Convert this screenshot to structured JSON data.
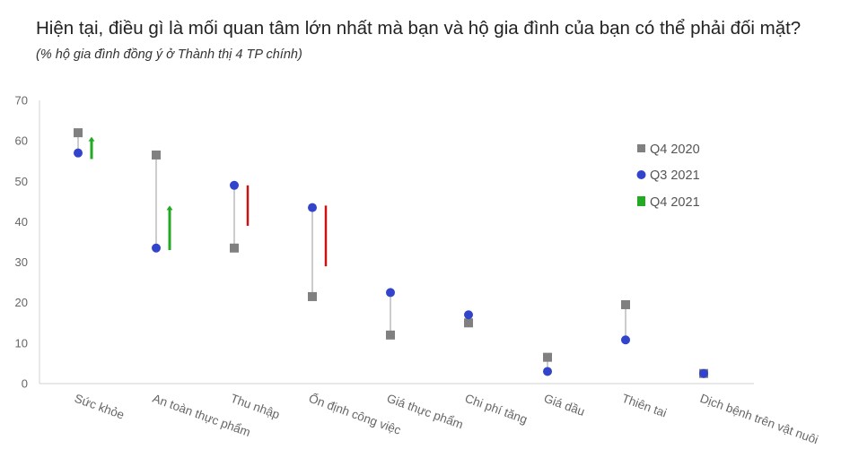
{
  "title": {
    "main": "Hiện tại, điều gì là mối quan tâm lớn nhất mà bạn và hộ gia đình của bạn có thể phải đối mặt?",
    "subtitle": "(% hộ gia đình đồng ý ở Thành thị 4 TP chính)"
  },
  "colors": {
    "q4_2020": "#808080",
    "q3_2021": "#3344cc",
    "increase": "#22aa22",
    "decrease": "#cc1111",
    "connector": "#999999",
    "axis": "#d0d0d0"
  },
  "chart_data": {
    "type": "scatter",
    "ylim": [
      0,
      70
    ],
    "yticks": [
      0,
      10,
      20,
      30,
      40,
      50,
      60,
      70
    ],
    "categories": [
      "Sức khỏe",
      "An toàn thực phẩm",
      "Thu nhập",
      "Ổn định công việc",
      "Giá thực phẩm",
      "Chi phí tăng",
      "Giá dầu",
      "Thiên tai",
      "Dịch bệnh trên vật nuôi"
    ],
    "series": [
      {
        "name": "Q4 2020",
        "marker": "square",
        "values": [
          62,
          56.5,
          33.5,
          21.5,
          12,
          15,
          6.5,
          19.5,
          2.5
        ]
      },
      {
        "name": "Q3 2021",
        "marker": "circle",
        "values": [
          57,
          33.5,
          49,
          43.5,
          22.5,
          17,
          3,
          10.8,
          2.5
        ]
      }
    ],
    "change_bars": {
      "name": "Q4 2021",
      "items": [
        {
          "category": "Sức khỏe",
          "from": 55.5,
          "to": 61,
          "direction": "up"
        },
        {
          "category": "An toàn thực phẩm",
          "from": 33,
          "to": 44,
          "direction": "up"
        },
        {
          "category": "Thu nhập",
          "from": 39,
          "to": 49,
          "direction": "down"
        },
        {
          "category": "Ổn định công việc",
          "from": 29,
          "to": 44,
          "direction": "down"
        }
      ]
    },
    "legend": [
      "Q4 2020",
      "Q3 2021",
      "Q4 2021"
    ],
    "legend_position": "right",
    "grid": false
  }
}
